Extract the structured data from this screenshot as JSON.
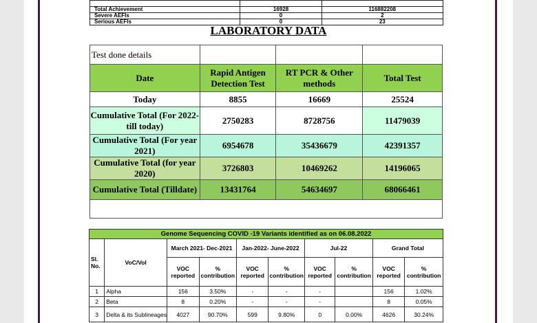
{
  "top_table": {
    "rows": [
      {
        "label": "Total Achievement",
        "v1": "16928",
        "v2": "116882208"
      },
      {
        "label": "Severe AEFIs",
        "v1": "0",
        "v2": "2"
      },
      {
        "label": "Serious AEFIs",
        "v1": "0",
        "v2": "23"
      }
    ]
  },
  "lab": {
    "title": "LABORATORY DATA",
    "section_label": "Test done details",
    "headers": {
      "date": "Date",
      "rapid": "Rapid Antigen Detection Test",
      "rtpcr": "RT PCR & Other methods",
      "total": "Total Test"
    },
    "rows": [
      {
        "date": "Today",
        "rapid": "8855",
        "rtpcr": "16669",
        "total": "25524"
      },
      {
        "date": "Cumulative Total (For 2022- till today)",
        "rapid": "2750283",
        "rtpcr": "8728756",
        "total": "11479039"
      },
      {
        "date": "Cumulative Total (For year 2021)",
        "rapid": "6954678",
        "rtpcr": "35436679",
        "total": "42391357"
      },
      {
        "date": "Cumulative Total (for year 2020)",
        "rapid": "3726803",
        "rtpcr": "10469262",
        "total": "14196065"
      },
      {
        "date": "Cumulative Total (Tilldate)",
        "rapid": "13431764",
        "rtpcr": "54634697",
        "total": "68066461"
      }
    ]
  },
  "genome": {
    "title": "Genome Sequencing COVID -19 Variants identified as on 06.08.2022",
    "col_sl": "Sl. No.",
    "col_voc": "VoC/VoI",
    "periods": [
      "March 2021- Dec-2021",
      "Jan-2022- June-2022",
      "Jul-22",
      "Grand Total"
    ],
    "sub_voc": "VOC reported",
    "sub_pct": "% contribution",
    "rows": [
      {
        "sl": "1",
        "name": "Alpha",
        "c": [
          "156",
          "3.50%",
          "-",
          "-",
          "-",
          "",
          "156",
          "1.02%"
        ]
      },
      {
        "sl": "2",
        "name": "Beta",
        "c": [
          "8",
          "0.20%",
          "-",
          "-",
          "-",
          "",
          "8",
          "0.05%"
        ]
      },
      {
        "sl": "3",
        "name": "Delta & its Sublineages",
        "c": [
          "4027",
          "90.70%",
          "599",
          "9.80%",
          "0",
          "0.00%",
          "4626",
          "30.24%"
        ]
      }
    ]
  }
}
